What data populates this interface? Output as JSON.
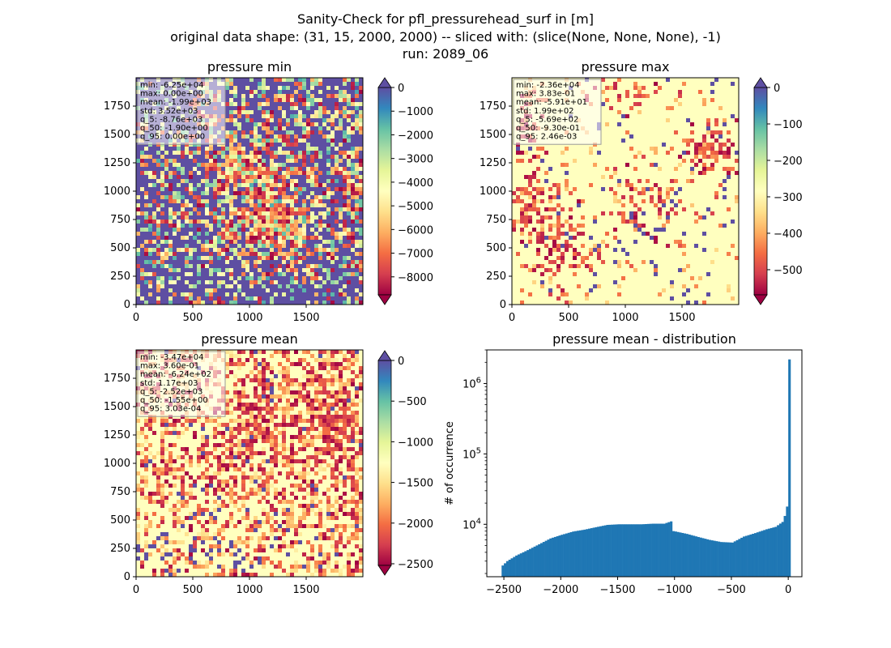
{
  "figure": {
    "title_lines": [
      "Sanity-Check for pfl_pressurehead_surf in [m]",
      "original data shape: (31, 15, 2000, 2000) -- sliced with: (slice(None, None, None), -1)",
      "run: 2089_06"
    ]
  },
  "panels": [
    {
      "title": "pressure min",
      "cmap": "Spectral",
      "stats": [
        "min: -6.25e+04",
        "max: 0.00e+00",
        "mean: -1.99e+03",
        "std: 3.52e+03",
        "q_5: -8.76e+03",
        "q_50: -1.90e+00",
        "q_95: 0.00e+00"
      ],
      "xticks": [
        "0",
        "500",
        "1000",
        "1500"
      ],
      "yticks": [
        "0",
        "250",
        "500",
        "750",
        "1000",
        "1250",
        "1500",
        "1750"
      ],
      "colorbar": {
        "vmin": -8760,
        "vmax": 0,
        "ticks": [
          "0",
          "−1000",
          "−2000",
          "−3000",
          "−4000",
          "−5000",
          "−6000",
          "−7000",
          "−8000"
        ],
        "extend_top_color": "#5e4fa2",
        "extend_bottom_color": "#9e0142"
      }
    },
    {
      "title": "pressure max",
      "cmap": "Spectral",
      "stats": [
        "min: -2.36e+04",
        "max: 3.83e-01",
        "mean: -5.91e+01",
        "std: 1.99e+02",
        "q_5: -5.69e+02",
        "q_50: -9.30e-01",
        "q_95: 2.46e-03"
      ],
      "xticks": [
        "0",
        "500",
        "1000",
        "1500"
      ],
      "yticks": [
        "0",
        "250",
        "500",
        "750",
        "1000",
        "1250",
        "1500",
        "1750"
      ],
      "colorbar": {
        "vmin": -569,
        "vmax": 0.00246,
        "ticks": [
          "0",
          "−100",
          "−200",
          "−300",
          "−400",
          "−500"
        ],
        "extend_top_color": "#5e4fa2",
        "extend_bottom_color": "#9e0142"
      }
    },
    {
      "title": "pressure mean",
      "cmap": "Spectral",
      "stats": [
        "min: -3.47e+04",
        "max: 3.60e-01",
        "mean: -6.24e+02",
        "std: 1.17e+03",
        "q_5: -2.52e+03",
        "q_50: -1.55e+00",
        "q_95: 3.03e-04"
      ],
      "xticks": [
        "0",
        "500",
        "1000",
        "1500"
      ],
      "yticks": [
        "0",
        "250",
        "500",
        "750",
        "1000",
        "1250",
        "1500",
        "1750"
      ],
      "colorbar": {
        "vmin": -2520,
        "vmax": 0.0003,
        "ticks": [
          "0",
          "−500",
          "−1000",
          "−1500",
          "−2000",
          "−2500"
        ],
        "extend_top_color": "#5e4fa2",
        "extend_bottom_color": "#9e0142"
      }
    }
  ],
  "chart_data": {
    "type": "bar",
    "title": "pressure mean - distribution",
    "ylabel": "# of occurrence",
    "xlabel": "",
    "yscale": "log",
    "xlim": [
      -2650,
      120
    ],
    "ylim": [
      1800,
      3000000
    ],
    "xticks": [
      "−2500",
      "−2000",
      "−1500",
      "−1000",
      "−500",
      "0"
    ],
    "xtick_values": [
      -2500,
      -2000,
      -1500,
      -1000,
      -500,
      0
    ],
    "yticks": [
      "10^4",
      "10^5",
      "10^6"
    ],
    "ytick_values": [
      10000,
      100000,
      1000000
    ],
    "bar_color": "#1f77b4",
    "bin_width": 20,
    "bins": [
      [
        -2520,
        2600
      ],
      [
        -2480,
        3000
      ],
      [
        -2400,
        3600
      ],
      [
        -2300,
        4300
      ],
      [
        -2200,
        5200
      ],
      [
        -2100,
        6300
      ],
      [
        -2000,
        7100
      ],
      [
        -1900,
        7900
      ],
      [
        -1800,
        8400
      ],
      [
        -1700,
        9100
      ],
      [
        -1600,
        9800
      ],
      [
        -1500,
        10000
      ],
      [
        -1400,
        10000
      ],
      [
        -1300,
        10000
      ],
      [
        -1200,
        10200
      ],
      [
        -1100,
        10200
      ],
      [
        -1040,
        11000
      ],
      [
        -1020,
        8000
      ],
      [
        -1000,
        7900
      ],
      [
        -900,
        7300
      ],
      [
        -800,
        6600
      ],
      [
        -700,
        6000
      ],
      [
        -600,
        5600
      ],
      [
        -500,
        5500
      ],
      [
        -400,
        6700
      ],
      [
        -300,
        7500
      ],
      [
        -200,
        8500
      ],
      [
        -120,
        9200
      ],
      [
        -60,
        10800
      ],
      [
        -30,
        14500
      ],
      [
        -10,
        22000
      ],
      [
        0,
        2200000
      ]
    ]
  }
}
